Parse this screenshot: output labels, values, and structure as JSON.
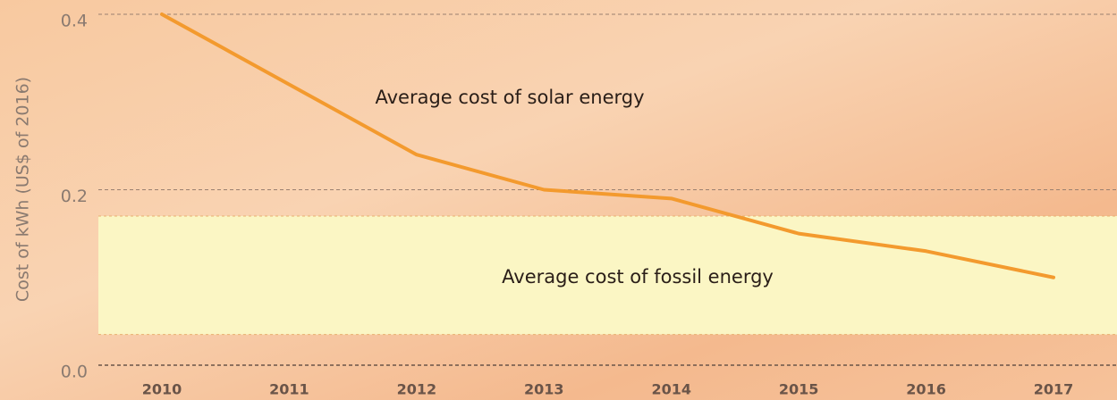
{
  "chart_data": {
    "type": "line",
    "y_label": "Cost of kWh (US$ of 2016)",
    "categories": [
      "2010",
      "2011",
      "2012",
      "2013",
      "2014",
      "2015",
      "2016",
      "2017"
    ],
    "series": [
      {
        "name": "Average cost of solar energy",
        "color": "#f39a2e",
        "values": [
          0.4,
          0.32,
          0.24,
          0.2,
          0.19,
          0.15,
          0.13,
          0.1
        ]
      }
    ],
    "band": {
      "name": "Average cost of fossil energy",
      "range": [
        0.035,
        0.17
      ],
      "color": "#fbf6c4"
    },
    "ylim": [
      0,
      0.4
    ],
    "yticks": [
      {
        "value": 0,
        "label": "0.0"
      },
      0.2,
      0.4
    ],
    "grid": true
  }
}
